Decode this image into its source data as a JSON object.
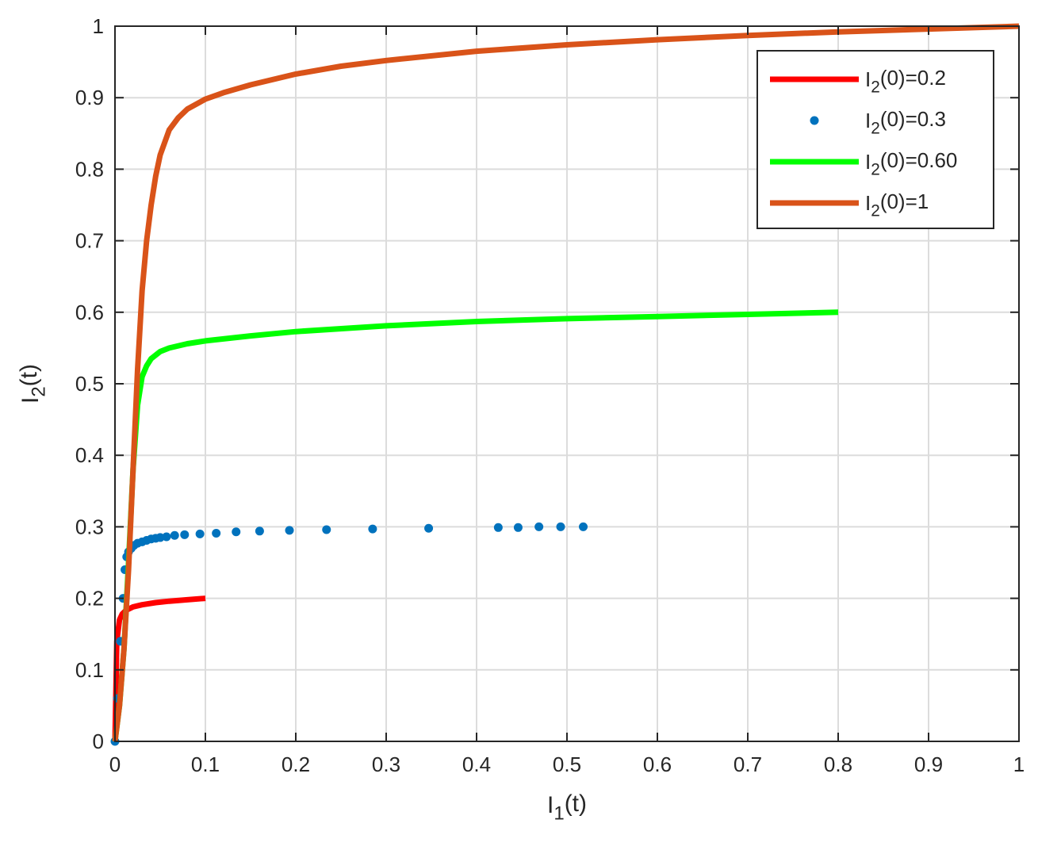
{
  "chart_data": {
    "type": "line",
    "xlabel": {
      "main": "I",
      "sub": "1",
      "tail": "(t)"
    },
    "ylabel": {
      "main": "I",
      "sub": "2",
      "tail": "(t)"
    },
    "xlim": [
      0,
      1
    ],
    "ylim": [
      0,
      1
    ],
    "xticks": [
      0,
      0.1,
      0.2,
      0.3,
      0.4,
      0.5,
      0.6,
      0.7,
      0.8,
      0.9,
      1
    ],
    "yticks": [
      0,
      0.1,
      0.2,
      0.3,
      0.4,
      0.5,
      0.6,
      0.7,
      0.8,
      0.9,
      1
    ],
    "xtick_labels": [
      "0",
      "0.1",
      "0.2",
      "0.3",
      "0.4",
      "0.5",
      "0.6",
      "0.7",
      "0.8",
      "0.9",
      "1"
    ],
    "ytick_labels": [
      "0",
      "0.1",
      "0.2",
      "0.3",
      "0.4",
      "0.5",
      "0.6",
      "0.7",
      "0.8",
      "0.9",
      "1"
    ],
    "grid": true,
    "legend_position": "top-right",
    "series": [
      {
        "name": {
          "main": "I",
          "sub": "2",
          "tail": "(0)=0.2"
        },
        "style": "line",
        "color": "#ff0000",
        "x": [
          0,
          0.002,
          0.005,
          0.008,
          0.012,
          0.02,
          0.03,
          0.045,
          0.06,
          0.08,
          0.1
        ],
        "y": [
          0,
          0.14,
          0.17,
          0.178,
          0.183,
          0.188,
          0.191,
          0.194,
          0.196,
          0.198,
          0.2
        ]
      },
      {
        "name": {
          "main": "I",
          "sub": "2",
          "tail": "(0)=0.3"
        },
        "style": "dots",
        "color": "#0072bd",
        "x": [
          0,
          0.003,
          0.006,
          0.009,
          0.011,
          0.013,
          0.015,
          0.018,
          0.021,
          0.025,
          0.03,
          0.035,
          0.04,
          0.045,
          0.05,
          0.057,
          0.066,
          0.077,
          0.094,
          0.112,
          0.134,
          0.16,
          0.193,
          0.234,
          0.285,
          0.347,
          0.424,
          0.446,
          0.469,
          0.493,
          0.518
        ],
        "y": [
          0,
          0.06,
          0.14,
          0.2,
          0.24,
          0.258,
          0.265,
          0.27,
          0.274,
          0.277,
          0.279,
          0.281,
          0.283,
          0.284,
          0.285,
          0.286,
          0.288,
          0.289,
          0.29,
          0.291,
          0.293,
          0.294,
          0.295,
          0.296,
          0.297,
          0.298,
          0.299,
          0.299,
          0.3,
          0.3,
          0.3
        ]
      },
      {
        "name": {
          "main": "I",
          "sub": "2",
          "tail": "(0)=0.60"
        },
        "style": "line",
        "color": "#00ff00",
        "x": [
          0,
          0.005,
          0.01,
          0.015,
          0.02,
          0.025,
          0.03,
          0.035,
          0.04,
          0.05,
          0.06,
          0.08,
          0.1,
          0.15,
          0.2,
          0.3,
          0.4,
          0.5,
          0.6,
          0.7,
          0.8
        ],
        "y": [
          0,
          0.05,
          0.13,
          0.25,
          0.38,
          0.47,
          0.51,
          0.525,
          0.535,
          0.545,
          0.55,
          0.556,
          0.56,
          0.567,
          0.573,
          0.581,
          0.587,
          0.591,
          0.594,
          0.597,
          0.6
        ]
      },
      {
        "name": {
          "main": "I",
          "sub": "2",
          "tail": "(0)=1"
        },
        "style": "line",
        "color": "#d95319",
        "x": [
          0,
          0.005,
          0.01,
          0.015,
          0.02,
          0.025,
          0.03,
          0.035,
          0.04,
          0.045,
          0.05,
          0.06,
          0.07,
          0.08,
          0.1,
          0.12,
          0.15,
          0.2,
          0.25,
          0.3,
          0.4,
          0.5,
          0.6,
          0.7,
          0.8,
          0.9,
          1
        ],
        "y": [
          0,
          0.05,
          0.13,
          0.24,
          0.38,
          0.52,
          0.63,
          0.7,
          0.75,
          0.79,
          0.82,
          0.855,
          0.872,
          0.884,
          0.898,
          0.907,
          0.918,
          0.933,
          0.944,
          0.952,
          0.965,
          0.974,
          0.981,
          0.987,
          0.992,
          0.996,
          1.0
        ]
      }
    ]
  }
}
